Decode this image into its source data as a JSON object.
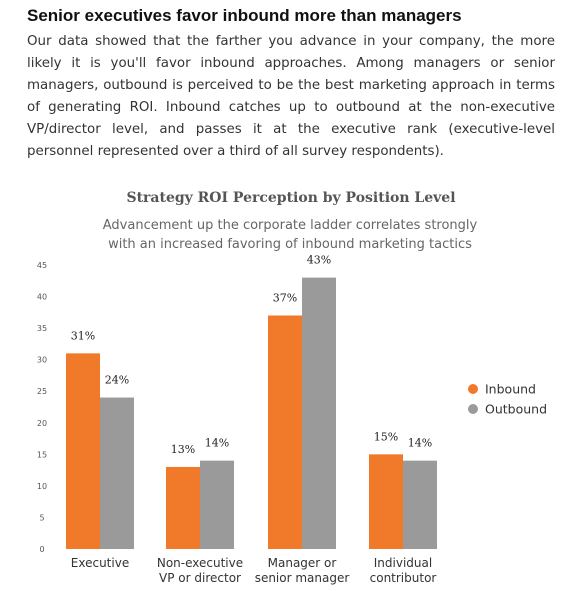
{
  "article": {
    "heading": "Senior executives favor inbound more than managers",
    "paragraph": "Our data showed that the farther you advance in your company, the more likely it is you'll favor inbound approaches. Among managers or senior managers, outbound is perceived to be the best marketing approach in terms of generating ROI. Inbound catches up to outbound at the non-executive VP/director level, and passes it at the executive rank (executive-level personnel represented over a third of all survey respondents)."
  },
  "chart_data": {
    "type": "bar",
    "title": "Strategy ROI Perception by Position Level",
    "subtitle": "Advancement up the corporate ladder correlates strongly with an increased favoring of inbound marketing tactics",
    "categories": [
      [
        "Executive"
      ],
      [
        "Non-executive",
        "VP or director"
      ],
      [
        "Manager or",
        "senior manager"
      ],
      [
        "Individual",
        "contributor"
      ]
    ],
    "series": [
      {
        "name": "Inbound",
        "color": "#f07a2a",
        "values": [
          31,
          13,
          37,
          15
        ],
        "labels": [
          "31%",
          "13%",
          "37%",
          "15%"
        ]
      },
      {
        "name": "Outbound",
        "color": "#9a9a9a",
        "values": [
          24,
          14,
          43,
          14
        ],
        "labels": [
          "24%",
          "14%",
          "43%",
          "14%"
        ]
      }
    ],
    "ylim": [
      0,
      45
    ],
    "yticks": [
      0,
      5,
      10,
      15,
      20,
      25,
      30,
      35,
      40,
      45
    ],
    "legend": "right",
    "grid": false
  }
}
